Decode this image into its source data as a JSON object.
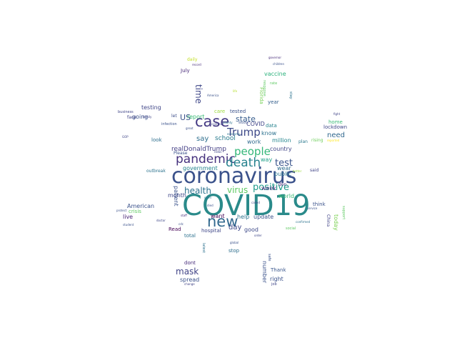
{
  "words": [
    {
      "text": "COVID19",
      "color": "#2a8a8a"
    },
    {
      "text": "coronavirus",
      "color": "#3b528b"
    },
    {
      "text": "new",
      "color": "#31688e"
    },
    {
      "text": "case",
      "color": "#443983"
    },
    {
      "text": "pandemic",
      "color": "#46327e"
    },
    {
      "text": "death",
      "color": "#26828e"
    },
    {
      "text": "Trump",
      "color": "#3e4a89"
    },
    {
      "text": "people",
      "color": "#35b779"
    },
    {
      "text": "positive",
      "color": "#1f9a8a"
    },
    {
      "text": "test",
      "color": "#3a548c"
    },
    {
      "text": "health",
      "color": "#2c728e"
    },
    {
      "text": "virus",
      "color": "#5ec962"
    },
    {
      "text": "mask",
      "color": "#414487"
    },
    {
      "text": "state",
      "color": "#365c8d"
    },
    {
      "text": "time",
      "color": "#3f4788"
    },
    {
      "text": "US",
      "color": "#3b528b"
    },
    {
      "text": "say",
      "color": "#2e6f8e"
    },
    {
      "text": "day",
      "color": "#3e4989"
    },
    {
      "text": "need",
      "color": "#31688e"
    },
    {
      "text": "school",
      "color": "#297b8e"
    },
    {
      "text": "realDonaldTrump",
      "color": "#433e85"
    },
    {
      "text": "government",
      "color": "#25848e"
    },
    {
      "text": "testing",
      "color": "#404688"
    },
    {
      "text": "American",
      "color": "#3b528b"
    },
    {
      "text": "vaccine",
      "color": "#2db27d"
    },
    {
      "text": "report",
      "color": "#3aba76"
    },
    {
      "text": "going",
      "color": "#3b528b"
    },
    {
      "text": "COVID",
      "color": "#404387"
    },
    {
      "text": "know",
      "color": "#2c718e"
    },
    {
      "text": "work",
      "color": "#306a8e"
    },
    {
      "text": "million",
      "color": "#25858e"
    },
    {
      "text": "country",
      "color": "#414487"
    },
    {
      "text": "public",
      "color": "#2a778e"
    },
    {
      "text": "wear",
      "color": "#2f6c8e"
    },
    {
      "text": "week",
      "color": "#472d7b"
    },
    {
      "text": "way",
      "color": "#1fa088"
    },
    {
      "text": "world",
      "color": "#3aba76"
    },
    {
      "text": "update",
      "color": "#3b528b"
    },
    {
      "text": "help",
      "color": "#2c728e"
    },
    {
      "text": "want",
      "color": "#440154"
    },
    {
      "text": "good",
      "color": "#3e4a89"
    },
    {
      "text": "month",
      "color": "#3f4788"
    },
    {
      "text": "live",
      "color": "#482475"
    },
    {
      "text": "crisis",
      "color": "#5ec962"
    },
    {
      "text": "patient",
      "color": "#3b528b"
    },
    {
      "text": "July",
      "color": "#482878"
    },
    {
      "text": "year",
      "color": "#35608d"
    },
    {
      "text": "Florida",
      "color": "#75d054"
    },
    {
      "text": "data",
      "color": "#26828e"
    },
    {
      "text": "care",
      "color": "#9bd93c"
    },
    {
      "text": "tested",
      "color": "#3b528b"
    },
    {
      "text": "Read",
      "color": "#440154"
    },
    {
      "text": "hospital",
      "color": "#3f4788"
    },
    {
      "text": "total",
      "color": "#2c718e"
    },
    {
      "text": "dont",
      "color": "#472d7b"
    },
    {
      "text": "spread",
      "color": "#3b528b"
    },
    {
      "text": "stop",
      "color": "#2e6f8e"
    },
    {
      "text": "number",
      "color": "#3b528b"
    },
    {
      "text": "Thank",
      "color": "#39568c"
    },
    {
      "text": "right",
      "color": "#3b528b"
    },
    {
      "text": "today",
      "color": "#7ad151"
    },
    {
      "text": "think",
      "color": "#3b528b"
    },
    {
      "text": "China",
      "color": "#414487"
    },
    {
      "text": "lockdown",
      "color": "#3f4788"
    },
    {
      "text": "home",
      "color": "#3aba76"
    },
    {
      "text": "rising",
      "color": "#6ccd5a"
    },
    {
      "text": "said",
      "color": "#414487"
    },
    {
      "text": "don",
      "color": "#482576"
    },
    {
      "text": "plan",
      "color": "#2a788e"
    },
    {
      "text": "look",
      "color": "#2e6e8e"
    },
    {
      "text": "let",
      "color": "#3d4e8a"
    },
    {
      "text": "face",
      "color": "#414487"
    },
    {
      "text": "Please",
      "color": "#3b528b"
    },
    {
      "text": "outbreak",
      "color": "#2c738e"
    },
    {
      "text": "daily",
      "color": "#c2df23"
    },
    {
      "text": "response",
      "color": "#5ec962"
    },
    {
      "text": "job",
      "color": "#404688"
    },
    {
      "text": "business",
      "color": "#404688"
    },
    {
      "text": "infection",
      "color": "#3b528b"
    },
    {
      "text": "record",
      "color": "#472d7b"
    },
    {
      "text": "great",
      "color": "#3b528b"
    },
    {
      "text": "county",
      "color": "#2c728e"
    },
    {
      "text": "continue",
      "color": "#404688"
    },
    {
      "text": "support",
      "color": "#5ec962"
    },
    {
      "text": "student",
      "color": "#3b528b"
    },
    {
      "text": "doctor",
      "color": "#3f4788"
    },
    {
      "text": "governor",
      "color": "#472d7b"
    },
    {
      "text": "died",
      "color": "#3b528b"
    },
    {
      "text": "global",
      "color": "#3b528b"
    },
    {
      "text": "latest",
      "color": "#2c718e"
    },
    {
      "text": "safe",
      "color": "#3b528b"
    },
    {
      "text": "change",
      "color": "#414487"
    },
    {
      "text": "America",
      "color": "#3b528b"
    },
    {
      "text": "rate",
      "color": "#5ec962"
    },
    {
      "text": "stay",
      "color": "#2c728e"
    },
    {
      "text": "GOP",
      "color": "#404688"
    },
    {
      "text": "fight",
      "color": "#414487"
    },
    {
      "text": "social",
      "color": "#5ec962"
    },
    {
      "text": "protect",
      "color": "#3b528b"
    },
    {
      "text": "order",
      "color": "#3f4788"
    },
    {
      "text": "confirmed",
      "color": "#2c728e"
    },
    {
      "text": "better",
      "color": "#9bd93c"
    },
    {
      "text": "reported",
      "color": "#fde725"
    },
    {
      "text": "cdc",
      "color": "#3b528b"
    },
    {
      "text": "staff",
      "color": "#472d7b"
    },
    {
      "text": "called",
      "color": "#3f4788"
    },
    {
      "text": "children",
      "color": "#3b528b"
    },
    {
      "text": "economy",
      "color": "#2c728e"
    },
    {
      "text": "news",
      "color": "#404688"
    },
    {
      "text": "life",
      "color": "#b5de2b"
    },
    {
      "text": "service",
      "color": "#3b528b"
    },
    {
      "text": "open",
      "color": "#2c728e"
    },
    {
      "text": "family",
      "color": "#414487"
    },
    {
      "text": "deaths",
      "color": "#3b528b"
    }
  ]
}
